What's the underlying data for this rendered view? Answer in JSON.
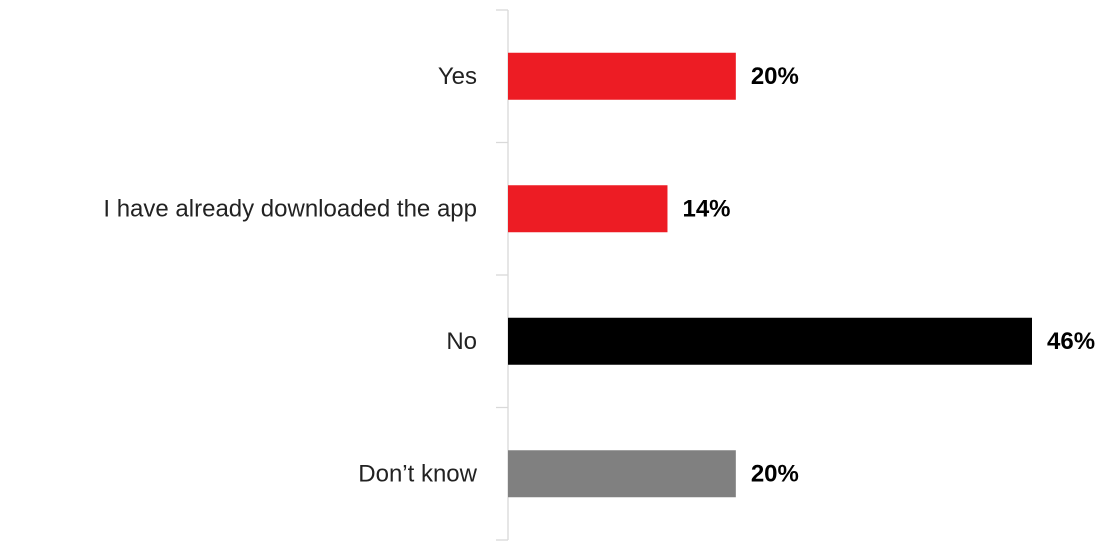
{
  "chart_data": {
    "type": "bar",
    "orientation": "horizontal",
    "categories": [
      "Yes",
      "I have already downloaded the app",
      "No",
      "Don’t know"
    ],
    "values": [
      20,
      14,
      46,
      20
    ],
    "value_labels": [
      "20%",
      "14%",
      "46%",
      "20%"
    ],
    "unit": "%",
    "bar_colors": [
      "#ed1c24",
      "#ed1c24",
      "#000000",
      "#808080"
    ],
    "xlim": [
      0,
      46
    ],
    "grid": false,
    "legend": "none",
    "title": "",
    "xlabel": "",
    "ylabel": ""
  }
}
